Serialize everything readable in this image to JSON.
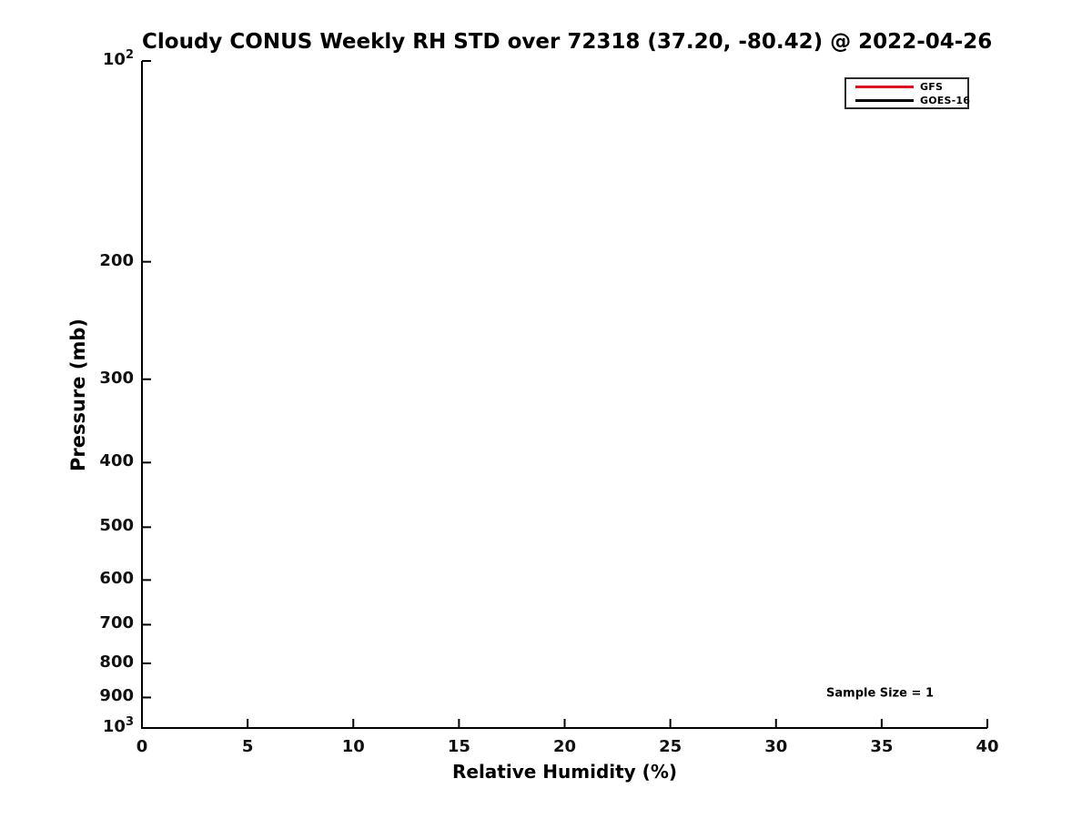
{
  "figure": {
    "title": "Cloudy CONUS Weekly RH STD over 72318 (37.20, -80.42) @ 2022-04-26",
    "xlabel": "Relative Humidity (%)",
    "ylabel": "Pressure (mb)",
    "annotation": "Sample Size = 1",
    "background_color": "#ffffff",
    "axis_color": "#000000",
    "tick_label_color": "#111111"
  },
  "legend": {
    "position": "upper right",
    "entries": [
      {
        "label": "GFS",
        "color": "#d91420"
      },
      {
        "label": "GOES-16",
        "color": "#000000"
      }
    ]
  },
  "chart_data": {
    "type": "line",
    "title": "Cloudy CONUS Weekly RH STD over 72318 (37.20, -80.42) @ 2022-04-26",
    "xlabel": "Relative Humidity (%)",
    "ylabel": "Pressure (mb)",
    "x_scale": "linear",
    "xlim": [
      0,
      40
    ],
    "x_ticks": [
      0,
      5,
      10,
      15,
      20,
      25,
      30,
      35,
      40
    ],
    "y_scale": "log",
    "y_inverted": true,
    "ylim": [
      100,
      1000
    ],
    "y_ticks": [
      {
        "value": 100,
        "label": "10",
        "sup": "2"
      },
      {
        "value": 200,
        "label": "200"
      },
      {
        "value": 300,
        "label": "300"
      },
      {
        "value": 400,
        "label": "400"
      },
      {
        "value": 500,
        "label": "500"
      },
      {
        "value": 600,
        "label": "600"
      },
      {
        "value": 700,
        "label": "700"
      },
      {
        "value": 800,
        "label": "800"
      },
      {
        "value": 900,
        "label": "900"
      },
      {
        "value": 1000,
        "label": "10",
        "sup": "3"
      }
    ],
    "grid": false,
    "legend_position": "upper right",
    "sample_size": 1,
    "series": [
      {
        "name": "GFS",
        "color": "#d91420",
        "x": [],
        "y": []
      },
      {
        "name": "GOES-16",
        "color": "#000000",
        "x": [],
        "y": []
      }
    ],
    "annotations": [
      {
        "text": "Sample Size = 1",
        "near_x": 35,
        "near_y_mb": 870
      }
    ]
  }
}
